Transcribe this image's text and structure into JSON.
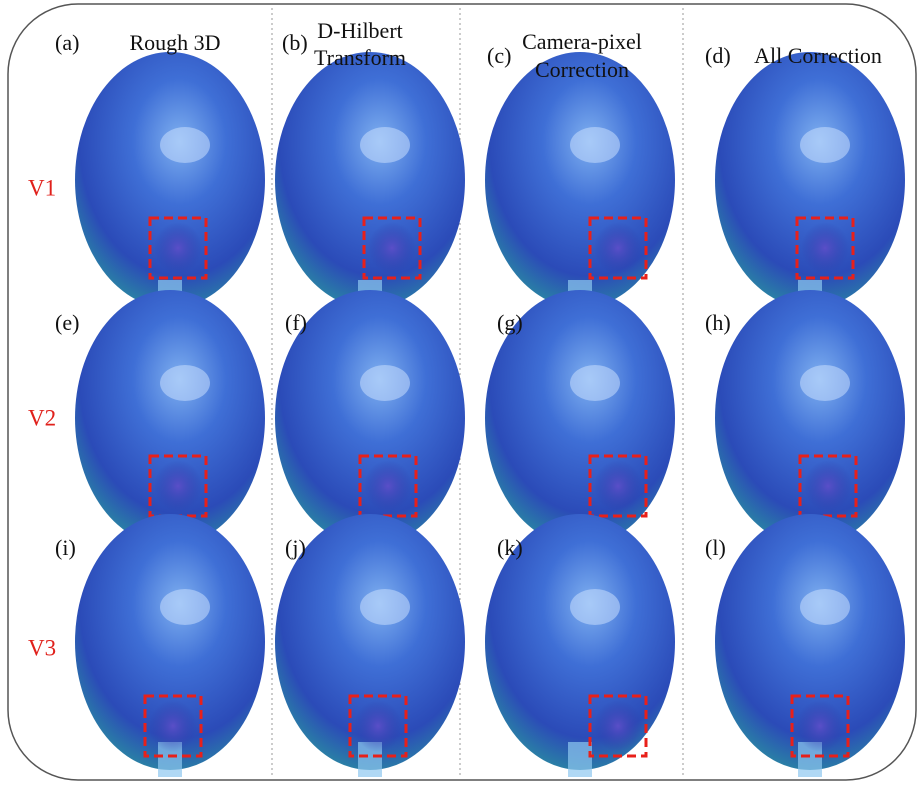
{
  "columns": [
    {
      "label": "(a)",
      "title": [
        "Rough 3D"
      ]
    },
    {
      "label": "(b)",
      "title": [
        "D-Hilbert",
        "Transform"
      ]
    },
    {
      "label": "(c)",
      "title": [
        "Camera-pixel",
        "Correction"
      ]
    },
    {
      "label": "(d)",
      "title": [
        "All Correction"
      ]
    }
  ],
  "panels": [
    "(e)",
    "(f)",
    "(g)",
    "(h)",
    "(i)",
    "(j)",
    "(k)",
    "(l)"
  ],
  "rows": [
    "V1",
    "V2",
    "V3"
  ]
}
